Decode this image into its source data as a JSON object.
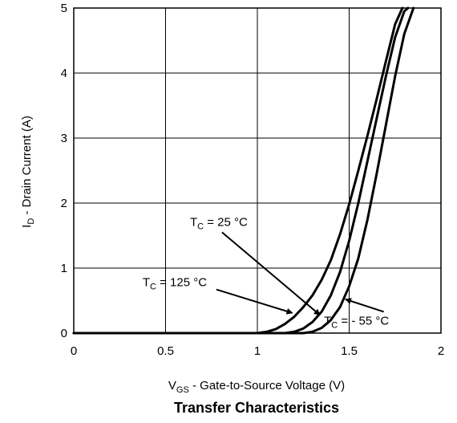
{
  "chart_data": {
    "type": "line",
    "title": "Transfer Characteristics",
    "xlabel": {
      "main": "V",
      "sub": "GS",
      "rest": " - Gate-to-Source Voltage (V)"
    },
    "ylabel": {
      "main": "I",
      "sub": "D",
      "rest": " - Drain Current (A)"
    },
    "xlim": [
      0,
      2
    ],
    "ylim": [
      0,
      5
    ],
    "xticks": [
      {
        "value": 0,
        "label": "0"
      },
      {
        "value": 0.5,
        "label": "0.5"
      },
      {
        "value": 1,
        "label": "1"
      },
      {
        "value": 1.5,
        "label": "1.5"
      },
      {
        "value": 2,
        "label": "2"
      }
    ],
    "yticks": [
      {
        "value": 0,
        "label": "0"
      },
      {
        "value": 1,
        "label": "1"
      },
      {
        "value": 2,
        "label": "2"
      },
      {
        "value": 3,
        "label": "3"
      },
      {
        "value": 4,
        "label": "4"
      },
      {
        "value": 5,
        "label": "5"
      }
    ],
    "grid": true,
    "series": [
      {
        "annotation": {
          "main": "T",
          "sub": "C",
          "rest": " = 125 °C"
        },
        "x": [
          0,
          1.0,
          1.05,
          1.1,
          1.15,
          1.2,
          1.25,
          1.3,
          1.35,
          1.4,
          1.45,
          1.5,
          1.55,
          1.6,
          1.65,
          1.7,
          1.75,
          1.79
        ],
        "y": [
          0,
          0,
          0.02,
          0.06,
          0.14,
          0.25,
          0.4,
          0.58,
          0.82,
          1.12,
          1.52,
          1.98,
          2.5,
          3.04,
          3.6,
          4.18,
          4.75,
          5.0
        ]
      },
      {
        "annotation": {
          "main": "T",
          "sub": "C",
          "rest": " = 25 °C"
        },
        "x": [
          0,
          1.15,
          1.2,
          1.25,
          1.3,
          1.35,
          1.4,
          1.45,
          1.5,
          1.55,
          1.6,
          1.65,
          1.7,
          1.75,
          1.8,
          1.82
        ],
        "y": [
          0,
          0,
          0.02,
          0.07,
          0.17,
          0.33,
          0.58,
          0.94,
          1.42,
          2.0,
          2.65,
          3.3,
          3.95,
          4.55,
          4.95,
          5.0
        ]
      },
      {
        "annotation": {
          "main": "T",
          "sub": "C",
          "rest": " = - 55 °C"
        },
        "x": [
          0,
          1.25,
          1.3,
          1.35,
          1.4,
          1.45,
          1.5,
          1.55,
          1.6,
          1.65,
          1.7,
          1.75,
          1.8,
          1.85
        ],
        "y": [
          0,
          0,
          0.02,
          0.08,
          0.2,
          0.4,
          0.72,
          1.15,
          1.75,
          2.45,
          3.2,
          3.95,
          4.6,
          5.0
        ]
      }
    ],
    "annotations": [
      {
        "series": 0,
        "at": [
          1.19,
          0.31
        ],
        "label_pos": [
          0.55,
          0.72
        ]
      },
      {
        "series": 1,
        "at": [
          1.34,
          0.28
        ],
        "label_pos": [
          0.79,
          1.65
        ]
      },
      {
        "series": 2,
        "at": [
          1.48,
          0.52
        ],
        "label_pos": [
          1.54,
          0.13
        ]
      }
    ]
  }
}
